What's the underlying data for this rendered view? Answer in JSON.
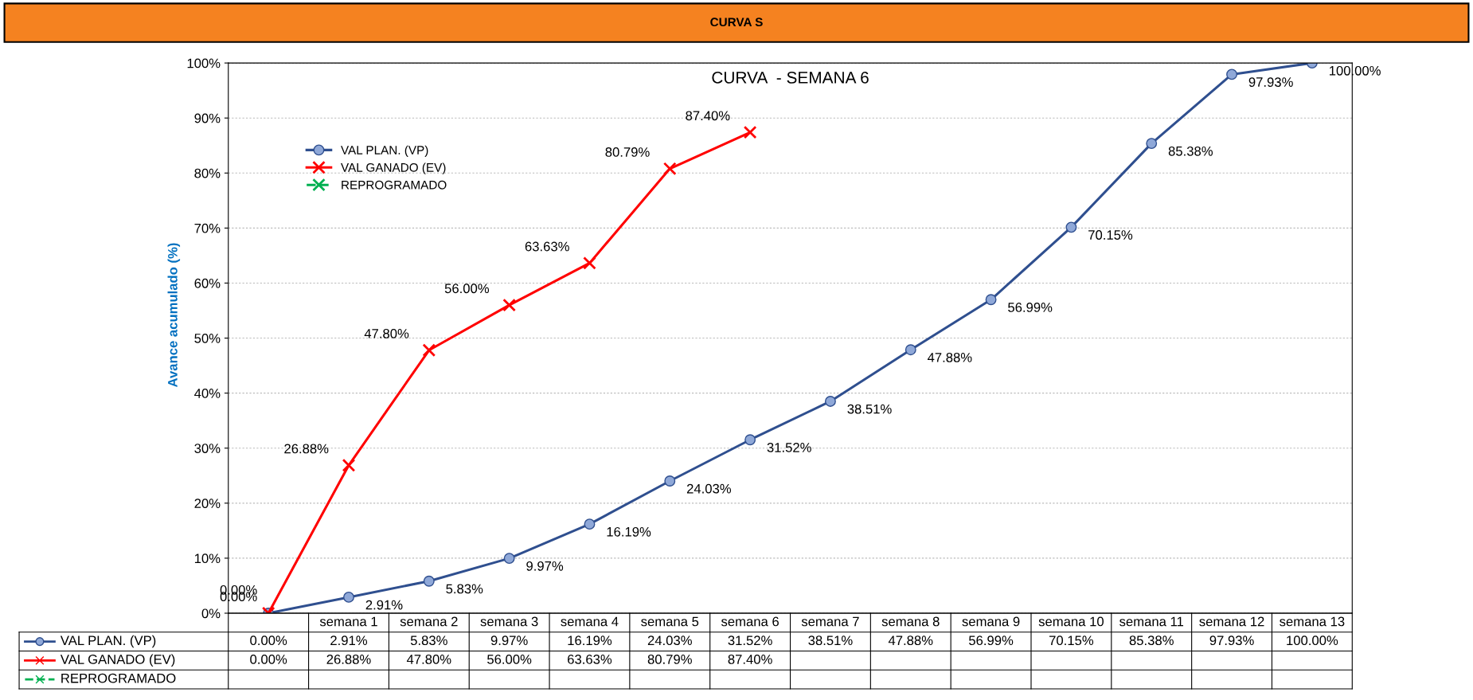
{
  "chart_data": {
    "type": "line",
    "title": "CURVA S",
    "subtitle": "CURVA  - SEMANA 6",
    "ylabel": "Avance acumulado (%)",
    "categories": [
      null,
      "semana 1",
      "semana 2",
      "semana 3",
      "semana 4",
      "semana 5",
      "semana 6",
      "semana 7",
      "semana 8",
      "semana 9",
      "semana 10",
      "semana 11",
      "semana 12",
      "semana 13"
    ],
    "series": [
      {
        "name": "VAL PLAN. (VP)",
        "color": "#2f4f8f",
        "marker": "circle",
        "line_style": "solid",
        "values": [
          0,
          2.91,
          5.83,
          9.97,
          16.19,
          24.03,
          31.52,
          38.51,
          47.88,
          56.99,
          70.15,
          85.38,
          97.93,
          100
        ],
        "value_labels": [
          "0.00%",
          "2.91%",
          "5.83%",
          "9.97%",
          "16.19%",
          "24.03%",
          "31.52%",
          "38.51%",
          "47.88%",
          "56.99%",
          "70.15%",
          "85.38%",
          "97.93%",
          "100.00%"
        ]
      },
      {
        "name": "VAL GANADO (EV)",
        "color": "#ff0000",
        "marker": "cross",
        "line_style": "solid",
        "values": [
          0,
          26.88,
          47.8,
          56,
          63.63,
          80.79,
          87.4,
          null,
          null,
          null,
          null,
          null,
          null,
          null
        ],
        "value_labels": [
          "0.00%",
          "26.88%",
          "47.80%",
          "56.00%",
          "63.63%",
          "80.79%",
          "87.40%",
          null,
          null,
          null,
          null,
          null,
          null,
          null
        ]
      },
      {
        "name": "REPROGRAMADO",
        "color": "#00b050",
        "marker": "cross",
        "line_style": "dashed",
        "values": [
          null,
          null,
          null,
          null,
          null,
          null,
          null,
          null,
          null,
          null,
          null,
          null,
          null,
          null
        ]
      }
    ],
    "ylim": [
      0,
      100
    ],
    "yticks": [
      {
        "value": 0,
        "label": "0%"
      },
      {
        "value": 10,
        "label": "10%"
      },
      {
        "value": 20,
        "label": "20%"
      },
      {
        "value": 30,
        "label": "30%"
      },
      {
        "value": 40,
        "label": "40%"
      },
      {
        "value": 50,
        "label": "50%"
      },
      {
        "value": 60,
        "label": "60%"
      },
      {
        "value": 70,
        "label": "70%"
      },
      {
        "value": 80,
        "label": "80%"
      },
      {
        "value": 90,
        "label": "90%"
      },
      {
        "value": 100,
        "label": "100%"
      }
    ],
    "grid": "y",
    "legend": "top left"
  }
}
